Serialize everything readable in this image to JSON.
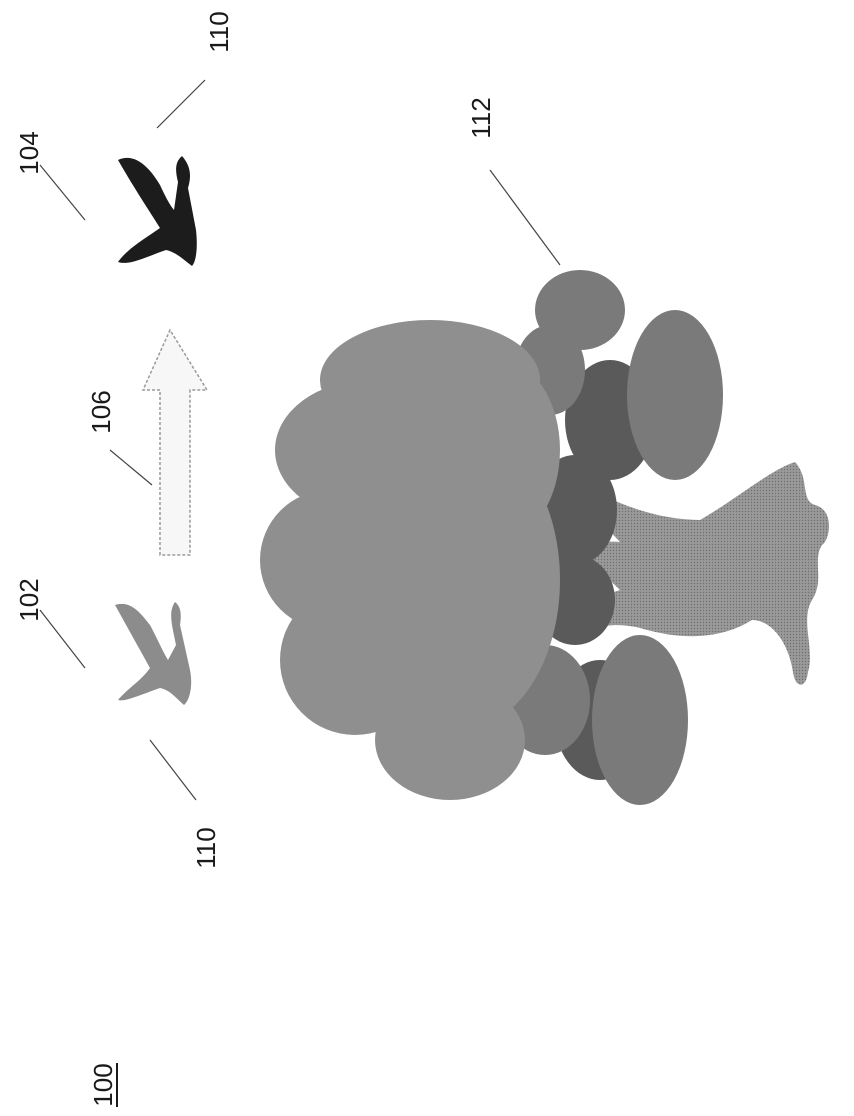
{
  "figure": {
    "number": "100",
    "labels": {
      "bird_first": "102",
      "bird_second": "104",
      "arrow": "106",
      "bird_first_wing": "110",
      "bird_second_wing": "110",
      "tree": "112"
    },
    "colors": {
      "bird_first": "#8c8c8c",
      "bird_second": "#1c1c1c",
      "arrow_fill": "#f7f7f7",
      "arrow_stroke": "#9a9a9a",
      "foliage_light": "#8f8f8f",
      "foliage_mid": "#7a7a7a",
      "foliage_dark": "#5a5a5a",
      "trunk": "#8a8a8a"
    },
    "icons": {
      "bird_first": "bird-in-flight-icon",
      "bird_second": "bird-in-flight-icon",
      "arrow": "block-arrow-up",
      "tree": "tree-illustration"
    }
  }
}
